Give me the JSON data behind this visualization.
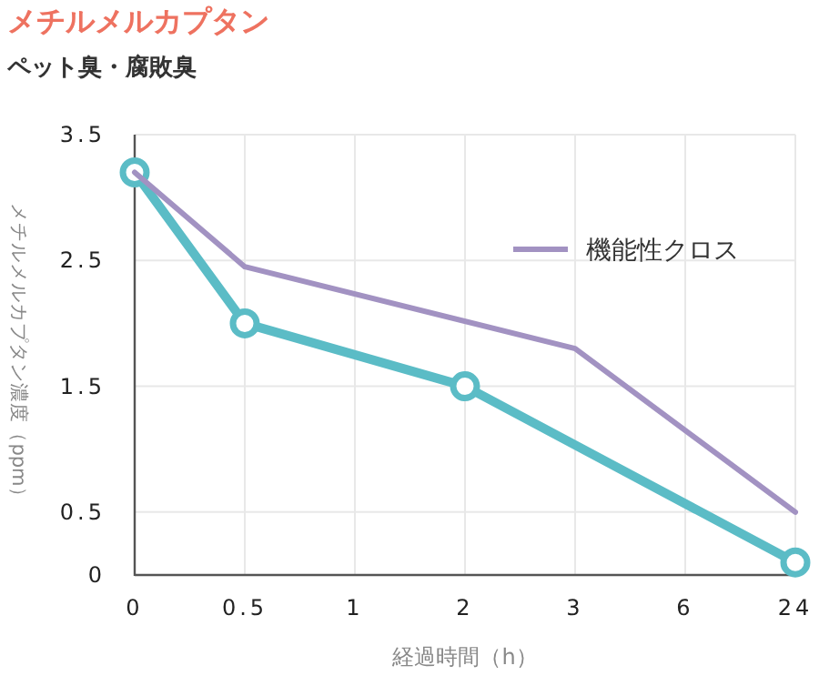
{
  "chart_data": {
    "type": "line",
    "title": "メチルメルカプタン",
    "subtitle": "ペット臭・腐敗臭",
    "xlabel": "経過時間（h）",
    "ylabel": "メチルメルカプタン濃度（ppm）",
    "categories": [
      "0",
      "0.5",
      "1",
      "2",
      "3",
      "6",
      "24"
    ],
    "series": [
      {
        "color": "#5bbcc6",
        "marker": "circle",
        "x": [
          "0",
          "0.5",
          "2",
          "24"
        ],
        "values": [
          3.2,
          2.0,
          1.5,
          0.1
        ]
      },
      {
        "name": "機能性クロス",
        "color": "#a292c2",
        "marker": "none",
        "x": [
          "0",
          "0.5",
          "3",
          "24"
        ],
        "values": [
          3.2,
          2.45,
          1.8,
          0.5
        ]
      }
    ],
    "ylim": [
      0,
      3.5
    ],
    "yticks": [
      0,
      0.5,
      1.5,
      2.5,
      3.5
    ],
    "grid": true,
    "legend": "top right"
  }
}
